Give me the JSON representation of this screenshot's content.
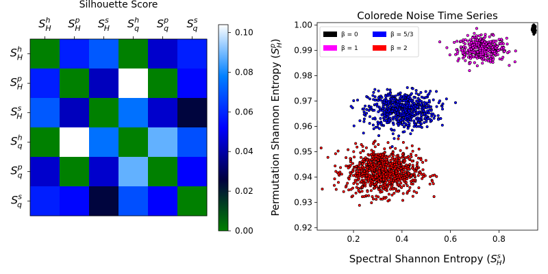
{
  "chart_data": [
    {
      "type": "heatmap",
      "title": "Silhouette Score",
      "row_labels": [
        [
          "S",
          "H",
          "h"
        ],
        [
          "S",
          "H",
          "p"
        ],
        [
          "S",
          "H",
          "s"
        ],
        [
          "S",
          "q",
          "h"
        ],
        [
          "S",
          "q",
          "p"
        ],
        [
          "S",
          "q",
          "s"
        ]
      ],
      "col_labels": [
        [
          "S",
          "H",
          "h"
        ],
        [
          "S",
          "H",
          "p"
        ],
        [
          "S",
          "H",
          "s"
        ],
        [
          "S",
          "q",
          "h"
        ],
        [
          "S",
          "q",
          "p"
        ],
        [
          "S",
          "q",
          "s"
        ]
      ],
      "values": [
        [
          0.0,
          0.058,
          0.07,
          0.0,
          0.045,
          0.058
        ],
        [
          0.058,
          0.0,
          0.043,
          0.104,
          0.0,
          0.053
        ],
        [
          0.07,
          0.043,
          0.0,
          0.075,
          0.045,
          0.025
        ],
        [
          0.0,
          0.104,
          0.075,
          0.0,
          0.088,
          0.068
        ],
        [
          0.045,
          0.0,
          0.045,
          0.088,
          0.0,
          0.052
        ],
        [
          0.058,
          0.053,
          0.025,
          0.068,
          0.052,
          0.0
        ]
      ],
      "colorbar": {
        "min": 0.0,
        "max": 0.104,
        "ticks": [
          0.0,
          0.02,
          0.04,
          0.06,
          0.08,
          0.1
        ],
        "tick_labels": [
          "0.00",
          "0.02",
          "0.04",
          "0.06",
          "0.08",
          "0.10"
        ],
        "colormap": [
          "#008000",
          "#000040",
          "#0000ff",
          "#0080ff",
          "#ffffff"
        ]
      }
    },
    {
      "type": "scatter",
      "title": "Colorede Noise Time Series",
      "xlabel": "Spectral Shannon Entropy",
      "xlabel_symbol": [
        "S",
        "H",
        "s"
      ],
      "ylabel": "Permutation Shannon Entropy",
      "ylabel_symbol": [
        "S",
        "H",
        "p"
      ],
      "xlim": [
        0.05,
        0.96
      ],
      "ylim": [
        0.919,
        1.001
      ],
      "xticks": [
        0.2,
        0.4,
        0.6,
        0.8
      ],
      "xtick_labels": [
        "0.2",
        "0.4",
        "0.6",
        "0.8"
      ],
      "yticks": [
        0.92,
        0.93,
        0.94,
        0.95,
        0.96,
        0.97,
        0.98,
        0.99,
        1.0
      ],
      "ytick_labels": [
        "0.92",
        "0.93",
        "0.94",
        "0.95",
        "0.96",
        "0.97",
        "0.98",
        "0.99",
        "1.00"
      ],
      "legend_position": "top-left",
      "series": [
        {
          "name": "β = 0",
          "color": "#000000",
          "center": [
            0.945,
            0.9985
          ],
          "spread": [
            0.004,
            0.0008
          ],
          "n": 40
        },
        {
          "name": "β = 1",
          "color": "#ff00ff",
          "center": [
            0.73,
            0.9905
          ],
          "spread": [
            0.05,
            0.0025
          ],
          "n": 380
        },
        {
          "name": "β = 5/3",
          "color": "#0000ff",
          "center": [
            0.4,
            0.9665
          ],
          "spread": [
            0.07,
            0.0036
          ],
          "n": 650
        },
        {
          "name": "β = 2",
          "color": "#ff0000",
          "center": [
            0.32,
            0.942
          ],
          "spread": [
            0.075,
            0.0045
          ],
          "n": 850
        }
      ]
    }
  ]
}
